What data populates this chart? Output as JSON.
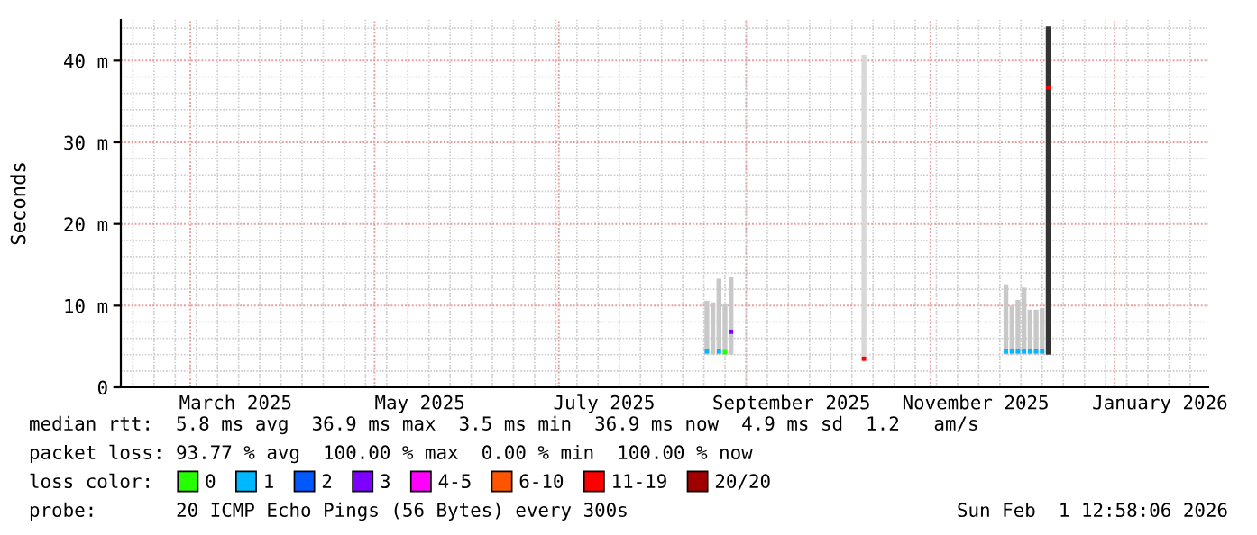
{
  "chart_data": {
    "type": "bar",
    "ylabel": "Seconds",
    "legend_title": "loss color:",
    "legend": "bottom",
    "grid": true,
    "marker": "square",
    "xlim": [
      "2025-02-06",
      "2026-02-01"
    ],
    "xticks": [
      {
        "value": "2025-03-16",
        "label": "March 2025"
      },
      {
        "value": "2025-05-16",
        "label": "May 2025"
      },
      {
        "value": "2025-07-16",
        "label": "July 2025"
      },
      {
        "value": "2025-09-16",
        "label": "September 2025"
      },
      {
        "value": "2025-11-16",
        "label": "November 2025"
      },
      {
        "value": "2026-01-16",
        "label": "January 2026"
      }
    ],
    "ylim": [
      0,
      45
    ],
    "yticks": [
      0,
      {
        "value": 10,
        "label": "10 m"
      },
      {
        "value": 20,
        "label": "20 m"
      },
      {
        "value": 30,
        "label": "30 m"
      },
      {
        "value": 40,
        "label": "40 m"
      }
    ],
    "annotations": [
      "median rtt:  5.8 ms avg  36.9 ms max  3.5 ms min  36.9 ms now  4.9 ms sd  1.2   am/s",
      "packet loss: 93.77 % avg  100.00 % max  0.00 % min  100.00 % now",
      "probe:       20 ICMP Echo Pings (56 Bytes) every 300s",
      "Sun Feb  1 12:58:06 2026"
    ],
    "series": [
      {
        "x": [
          "2025-08-19",
          "2025-08-21",
          "2025-08-23",
          "2025-08-25",
          "2025-08-27",
          "2025-10-10",
          "2025-11-26",
          "2025-11-28",
          "2025-11-30",
          "2025-12-02",
          "2025-12-04",
          "2025-12-06",
          "2025-12-08",
          "2025-12-10"
        ],
        "base": [
          4.0,
          4.0,
          4.0,
          4.0,
          4.0,
          3.3,
          4.0,
          4.0,
          4.0,
          4.0,
          4.0,
          4.0,
          4.0,
          4.0
        ],
        "values": [
          6.6,
          6.4,
          9.3,
          6.2,
          9.5,
          37.4,
          8.6,
          6.0,
          6.7,
          8.2,
          5.5,
          5.5,
          5.7,
          40.2
        ],
        "colors": [
          "#c8c8c8",
          "#c8c8c8",
          "#c8c8c8",
          "#c8c8c8",
          "#c8c8c8",
          "#d8d8d8",
          "#c8c8c8",
          "#c8c8c8",
          "#c8c8c8",
          "#c8c8c8",
          "#c8c8c8",
          "#c8c8c8",
          "#c8c8c8",
          "#333333"
        ]
      },
      {
        "type": "scatter",
        "name": "0",
        "color": "#26ff00",
        "x": [
          "2025-08-25"
        ],
        "values": [
          4.3
        ]
      },
      {
        "type": "scatter",
        "name": "1",
        "color": "#00b8ff",
        "x": [
          "2025-08-19",
          "2025-08-23",
          "2025-11-26",
          "2025-11-28",
          "2025-11-30",
          "2025-12-02",
          "2025-12-04",
          "2025-12-06",
          "2025-12-08"
        ],
        "values": [
          4.4,
          4.4,
          4.4,
          4.4,
          4.4,
          4.4,
          4.4,
          4.4,
          4.4
        ]
      },
      {
        "type": "scatter",
        "name": "2",
        "color": "#0059ff"
      },
      {
        "type": "scatter",
        "name": "3",
        "color": "#7e00ff",
        "x": [
          "2025-08-27"
        ],
        "values": [
          6.8
        ]
      },
      {
        "type": "scatter",
        "name": "4-5",
        "color": "#ff00ff"
      },
      {
        "type": "scatter",
        "name": "6-10",
        "color": "#ff5500"
      },
      {
        "type": "scatter",
        "name": "11-19",
        "color": "#ff0000",
        "x": [
          "2025-10-10",
          "2025-12-10"
        ],
        "values": [
          3.5,
          36.7
        ]
      },
      {
        "type": "scatter",
        "name": "20/20",
        "color": "#a10000"
      }
    ]
  }
}
